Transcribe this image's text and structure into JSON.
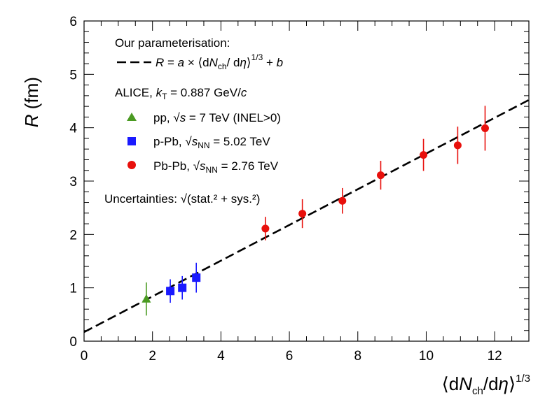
{
  "chart_data": {
    "type": "scatter",
    "xlim": [
      0,
      13
    ],
    "ylim": [
      0,
      6
    ],
    "x_ticks": [
      "0",
      "2",
      "4",
      "6",
      "8",
      "10",
      "12"
    ],
    "y_ticks": [
      "0",
      "1",
      "2",
      "3",
      "4",
      "5",
      "6"
    ],
    "xlabel": "⟨dNch/dη⟩^1/3",
    "ylabel": "R (fm)",
    "grid": false,
    "legend_placement": "top-left",
    "fit": {
      "legend_header": "Our parameterisation:",
      "label": "R = a × ⟨dNch/ dη⟩^1/3 + b",
      "style": "dashed",
      "x": [
        0,
        13
      ],
      "y": [
        0.17,
        4.52
      ]
    },
    "legend_group_title": "ALICE, kT = 0.887 GeV/c",
    "uncertainty_note": "Uncertainties: √(stat.² + sys.²)",
    "series": [
      {
        "name": "pp, √s = 7 TeV (INEL>0)",
        "marker": "triangle",
        "color": "#4a9a22",
        "points": [
          {
            "x": 1.82,
            "y": 0.79,
            "err": 0.31
          }
        ]
      },
      {
        "name": "p-Pb, √sNN = 5.02 TeV",
        "marker": "square",
        "color": "#1a1aff",
        "points": [
          {
            "x": 2.52,
            "y": 0.94,
            "err": 0.22
          },
          {
            "x": 2.87,
            "y": 1.0,
            "err": 0.22
          },
          {
            "x": 3.28,
            "y": 1.19,
            "err": 0.28
          }
        ]
      },
      {
        "name": "Pb-Pb, √sNN = 2.76 TeV",
        "marker": "circle",
        "color": "#e8100c",
        "points": [
          {
            "x": 5.3,
            "y": 2.11,
            "err": 0.22
          },
          {
            "x": 6.38,
            "y": 2.39,
            "err": 0.27
          },
          {
            "x": 7.55,
            "y": 2.63,
            "err": 0.24
          },
          {
            "x": 8.67,
            "y": 3.11,
            "err": 0.27
          },
          {
            "x": 9.92,
            "y": 3.49,
            "err": 0.3
          },
          {
            "x": 10.92,
            "y": 3.67,
            "err": 0.35
          },
          {
            "x": 11.72,
            "y": 3.99,
            "err": 0.42
          }
        ]
      }
    ]
  }
}
